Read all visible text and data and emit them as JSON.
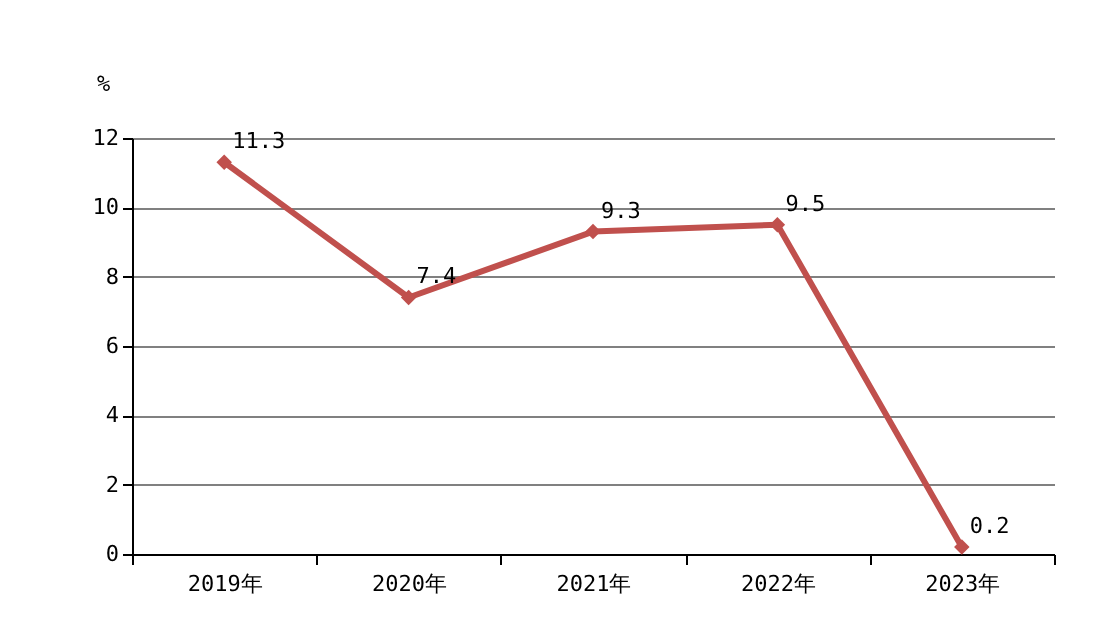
{
  "chart_data": {
    "type": "line",
    "ylabel": "%",
    "categories": [
      "2019年",
      "2020年",
      "2021年",
      "2022年",
      "2023年"
    ],
    "values": [
      11.3,
      7.4,
      9.3,
      9.5,
      0.2
    ],
    "color": "#c0504d",
    "ylim": [
      0,
      12
    ],
    "yticks": [
      0,
      2,
      4,
      6,
      8,
      10,
      12
    ],
    "grid": "y",
    "marker": "diamond",
    "line_style": "solid",
    "data_labels": true
  }
}
